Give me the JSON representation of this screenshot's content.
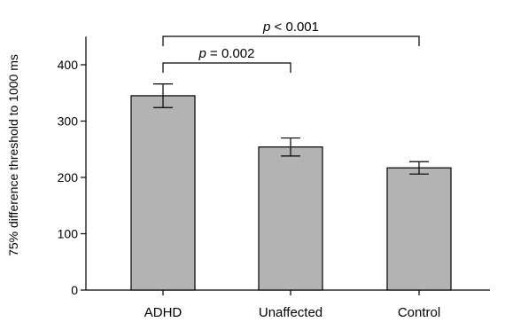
{
  "chart_data": {
    "type": "bar",
    "ylabel": "75% difference threshold to 1000 ms",
    "ylim": [
      0,
      450
    ],
    "yticks": [
      0,
      100,
      200,
      300,
      400
    ],
    "categories": [
      "ADHD",
      "Unaffected",
      "Control"
    ],
    "values": [
      345,
      254,
      217
    ],
    "error": [
      21,
      16,
      11
    ],
    "comparisons": [
      {
        "from": 0,
        "to": 1,
        "p_symbol": "p",
        "p_rest": " = 0.002",
        "level": 1
      },
      {
        "from": 0,
        "to": 2,
        "p_symbol": "p",
        "p_rest": " < 0.001",
        "level": 2
      }
    ]
  }
}
